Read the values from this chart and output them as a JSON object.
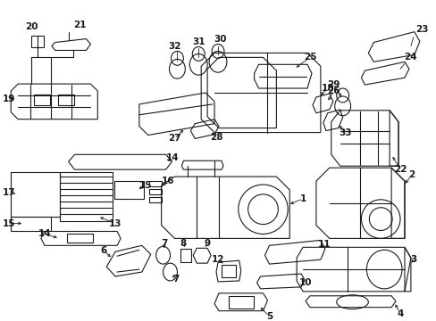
{
  "bg_color": "#ffffff",
  "fig_width": 4.89,
  "fig_height": 3.6,
  "dpi": 100,
  "line_color": "#1a1a1a",
  "text_color": "#1a1a1a",
  "label_fontsize": 6.5
}
